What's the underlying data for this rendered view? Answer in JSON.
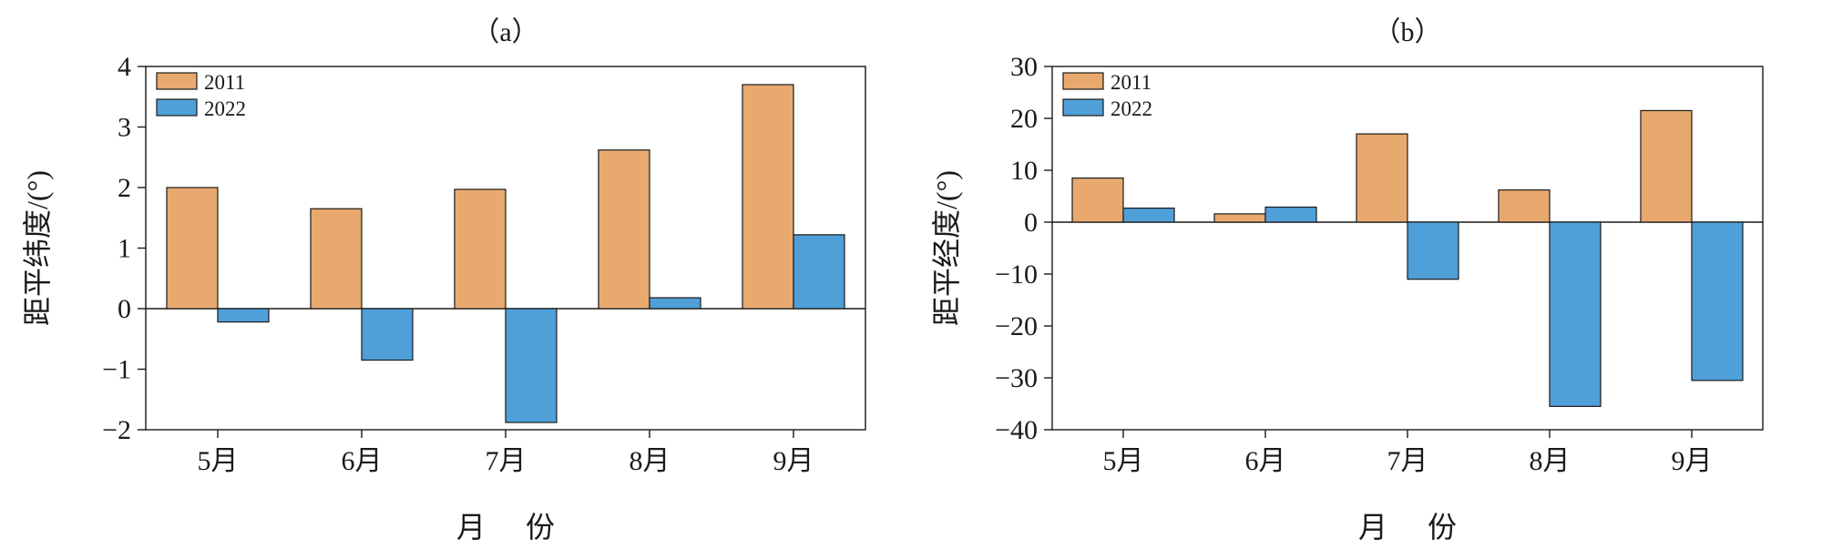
{
  "chart_data": [
    {
      "type": "bar",
      "title": "（a）",
      "xlabel": "月 份",
      "ylabel": "距平纬度/(°)",
      "categories": [
        "5月",
        "6月",
        "7月",
        "8月",
        "9月"
      ],
      "ylim": [
        -2,
        4
      ],
      "yticks": [
        4,
        3,
        2,
        1,
        0,
        -1,
        -2
      ],
      "ytick_labels": [
        "4",
        "3",
        "2",
        "1",
        "0",
        "−1",
        "−2"
      ],
      "legend_position": "top-left",
      "grid": false,
      "series": [
        {
          "name": "2011",
          "color": "#e8a96e",
          "values": [
            2.0,
            1.65,
            1.97,
            2.62,
            3.7
          ]
        },
        {
          "name": "2022",
          "color": "#4f9fd9",
          "values": [
            -0.22,
            -0.85,
            -1.88,
            0.18,
            1.22
          ]
        }
      ]
    },
    {
      "type": "bar",
      "title": "（b）",
      "xlabel": "月 份",
      "ylabel": "距平经度/(°)",
      "categories": [
        "5月",
        "6月",
        "7月",
        "8月",
        "9月"
      ],
      "ylim": [
        -40,
        30
      ],
      "yticks": [
        30,
        20,
        10,
        0,
        -10,
        -20,
        -30,
        -40
      ],
      "ytick_labels": [
        "30",
        "20",
        "10",
        "0",
        "−10",
        "−20",
        "−30",
        "−40"
      ],
      "legend_position": "top-left",
      "grid": false,
      "series": [
        {
          "name": "2011",
          "color": "#e8a96e",
          "values": [
            8.5,
            1.6,
            17.0,
            6.2,
            21.5
          ]
        },
        {
          "name": "2022",
          "color": "#4f9fd9",
          "values": [
            2.7,
            2.9,
            -11.0,
            -35.5,
            -30.5
          ]
        }
      ]
    }
  ]
}
